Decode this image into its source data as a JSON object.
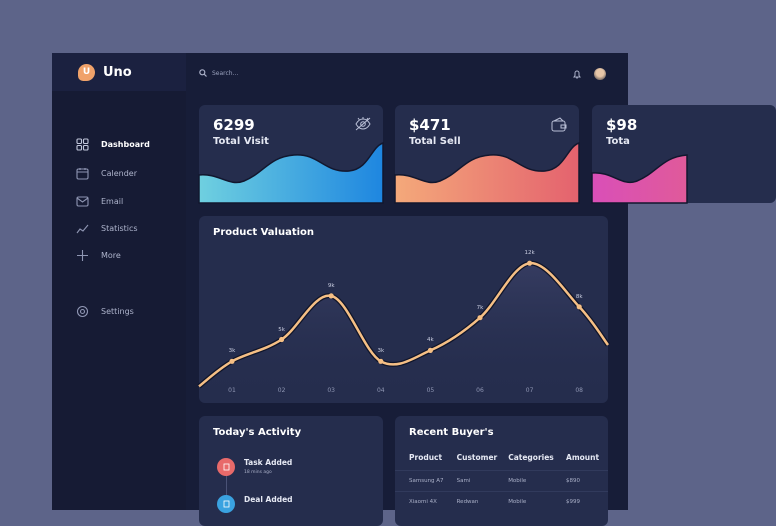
{
  "app": {
    "name": "Uno",
    "logo_letter": "U"
  },
  "sidebar": {
    "items": [
      {
        "label": "Dashboard",
        "icon": "grid-icon",
        "active": true
      },
      {
        "label": "Calender",
        "icon": "calendar-icon"
      },
      {
        "label": "Email",
        "icon": "email-icon"
      },
      {
        "label": "Statistics",
        "icon": "statistics-icon"
      },
      {
        "label": "More",
        "icon": "plus-icon"
      },
      {
        "label": "Settings",
        "icon": "gear-icon"
      }
    ]
  },
  "header": {
    "search_placeholder": "Search..."
  },
  "stats": [
    {
      "value": "6299",
      "label": "Total Visit",
      "icon": "eye-icon",
      "gradient": [
        "#6fd0e0",
        "#1e86e0"
      ]
    },
    {
      "value": "$471",
      "label": "Total Sell",
      "icon": "wallet-icon",
      "gradient": [
        "#f4a97a",
        "#e4626e"
      ]
    },
    {
      "value": "$98",
      "label": "Tota",
      "gradient": [
        "#d94fb8",
        "#e05a9a"
      ]
    }
  ],
  "chart_data": {
    "type": "line",
    "title": "Product Valuation",
    "categories": [
      "01",
      "02",
      "03",
      "04",
      "05",
      "06",
      "07",
      "08"
    ],
    "values": [
      3,
      5,
      9,
      3,
      4,
      7,
      12,
      8
    ],
    "data_labels": [
      "3k",
      "5k",
      "9k",
      "3k",
      "4k",
      "7k",
      "12k",
      "8k"
    ],
    "line_color": "#f5bf85",
    "grid": false
  },
  "activity": {
    "title": "Today's Activity",
    "items": [
      {
        "title": "Task Added",
        "time": "18 mins ago",
        "color": "#e86a6a"
      },
      {
        "title": "Deal Added",
        "time": "",
        "color": "#3aa2e0"
      }
    ]
  },
  "buyers": {
    "title": "Recent Buyer's",
    "columns": [
      "Product",
      "Customer",
      "Categories",
      "Amount"
    ],
    "rows": [
      [
        "Samsung A7",
        "Sami",
        "Mobile",
        "$890"
      ],
      [
        "Xiaomi 4X",
        "Redwan",
        "Mobile",
        "$999"
      ]
    ]
  }
}
